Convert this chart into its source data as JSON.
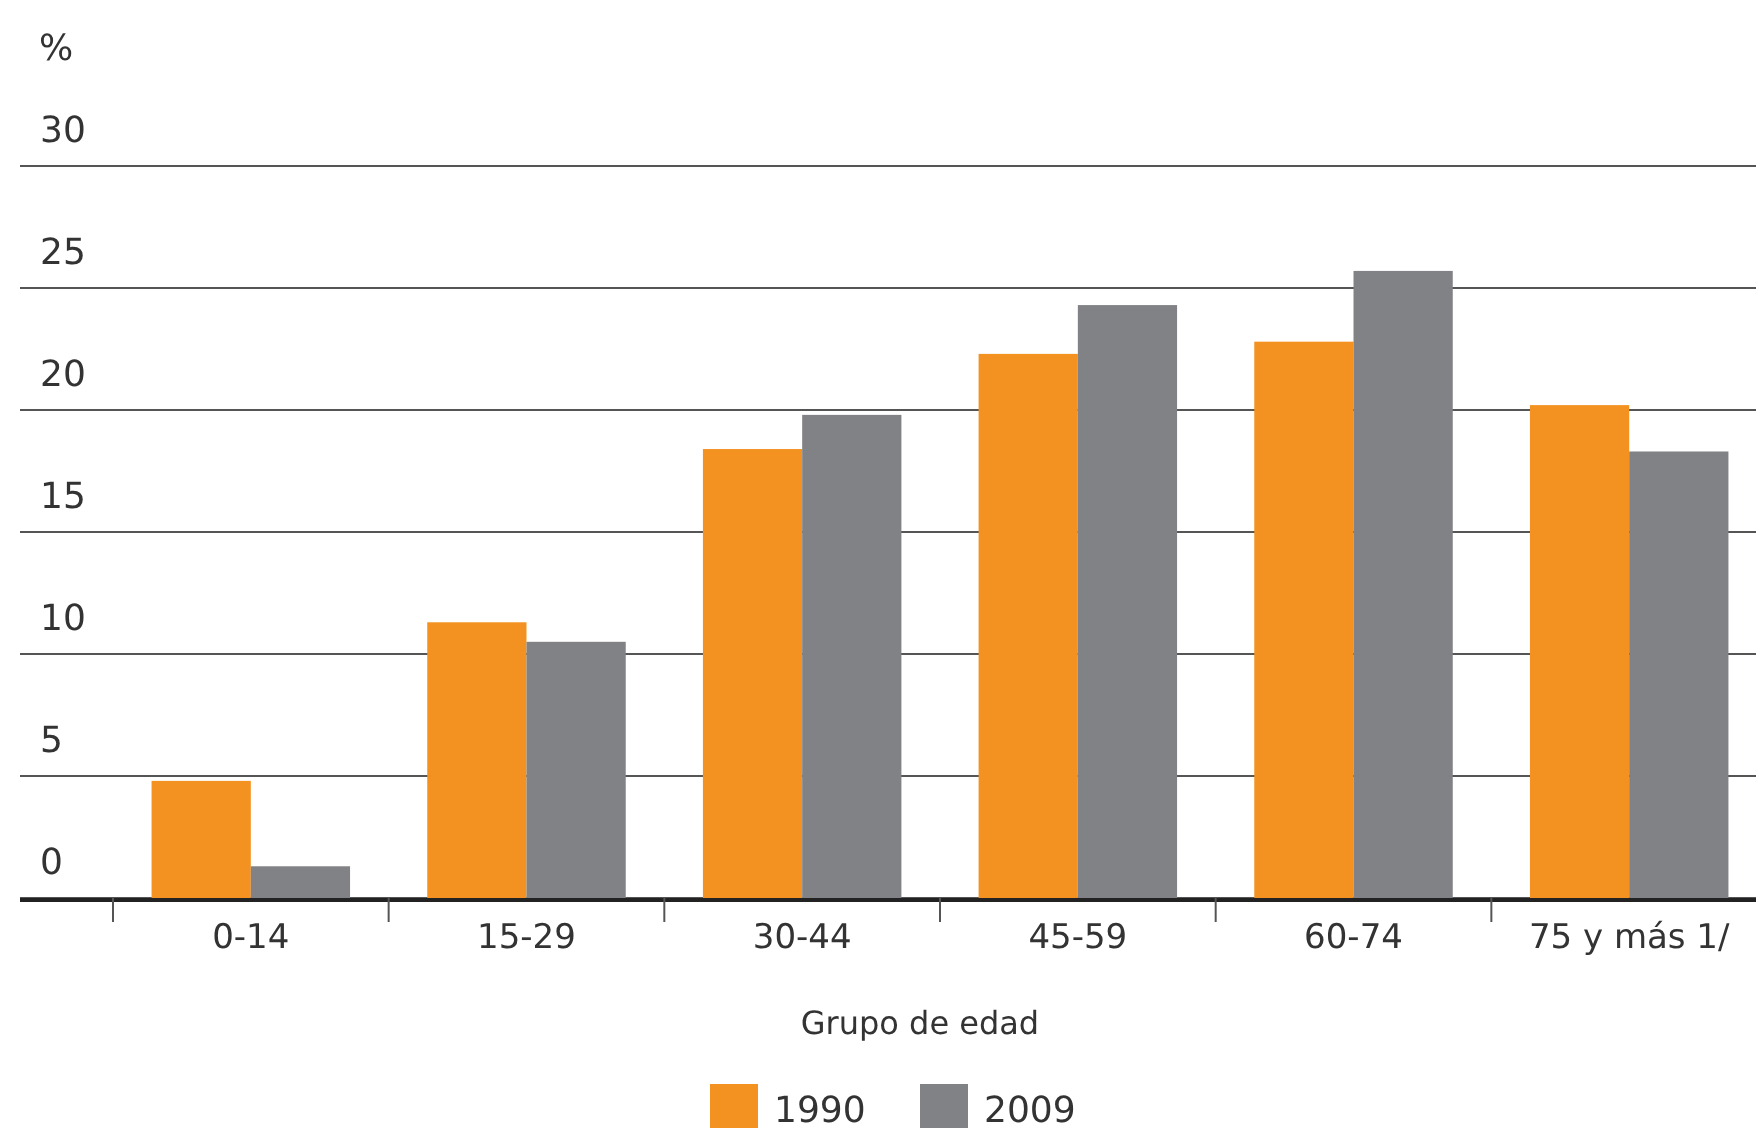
{
  "chart_data": {
    "type": "bar",
    "ylabel": "%",
    "xlabel": "Grupo de edad",
    "categories": [
      "0-14",
      "15-29",
      "30-44",
      "45-59",
      "60-74",
      "75 y más 1/"
    ],
    "series": [
      {
        "name": "1990",
        "color": "#f39220",
        "values": [
          4.8,
          11.3,
          18.4,
          22.3,
          22.8,
          20.2
        ]
      },
      {
        "name": "2009",
        "color": "#818286",
        "values": [
          1.3,
          10.5,
          19.8,
          24.3,
          25.7,
          18.3
        ]
      }
    ],
    "ylim": [
      0,
      30
    ],
    "yticks": [
      0,
      5,
      10,
      15,
      20,
      25,
      30
    ],
    "grid": "y",
    "legend": "bottom"
  }
}
